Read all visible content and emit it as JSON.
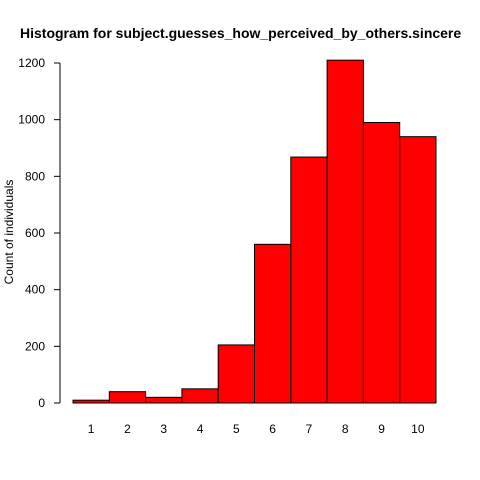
{
  "chart_data": {
    "type": "bar",
    "title": "Histogram for subject.guesses_how_perceived_by_others.sincere",
    "xlabel": "",
    "ylabel": "Count of individuals",
    "categories": [
      "1",
      "2",
      "3",
      "4",
      "5",
      "6",
      "7",
      "8",
      "9",
      "10"
    ],
    "values": [
      10,
      40,
      20,
      50,
      205,
      560,
      868,
      1210,
      990,
      940
    ],
    "ylim": [
      0,
      1200
    ],
    "yticks": [
      "0",
      "200",
      "400",
      "600",
      "800",
      "1000",
      "1200"
    ],
    "bar_color": "#ff0000",
    "bar_border_color": "#000000",
    "grid": false
  }
}
